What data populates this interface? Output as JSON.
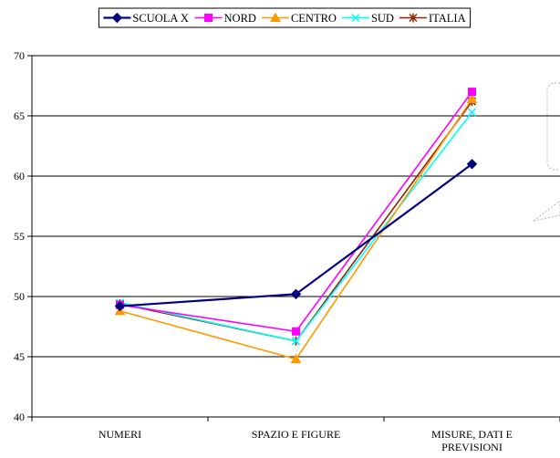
{
  "chart_data": {
    "type": "line",
    "title": "",
    "xlabel": "",
    "ylabel": "",
    "categories": [
      "NUMERI",
      "SPAZIO E FIGURE",
      "MISURE, DATI E PREVISIONI"
    ],
    "ylim": [
      40,
      70
    ],
    "yticks": [
      40,
      45,
      50,
      55,
      60,
      65,
      70
    ],
    "grid": "horizontal",
    "legend_position": "top",
    "series": [
      {
        "name": "SCUOLA X",
        "values": [
          49.2,
          50.2,
          61.0
        ],
        "color": "#000080",
        "marker": "diamond"
      },
      {
        "name": "NORD",
        "values": [
          49.3,
          47.1,
          67.0
        ],
        "color": "#ff00ff",
        "marker": "square"
      },
      {
        "name": "CENTRO",
        "values": [
          48.8,
          44.8,
          66.4
        ],
        "color": "#ff9900",
        "marker": "triangle"
      },
      {
        "name": "SUD",
        "values": [
          49.5,
          46.3,
          65.3
        ],
        "color": "#00ffff",
        "marker": "x"
      },
      {
        "name": "ITALIA",
        "values": [
          49.4,
          46.3,
          66.2
        ],
        "color": "#8b2500",
        "marker": "star"
      }
    ]
  }
}
